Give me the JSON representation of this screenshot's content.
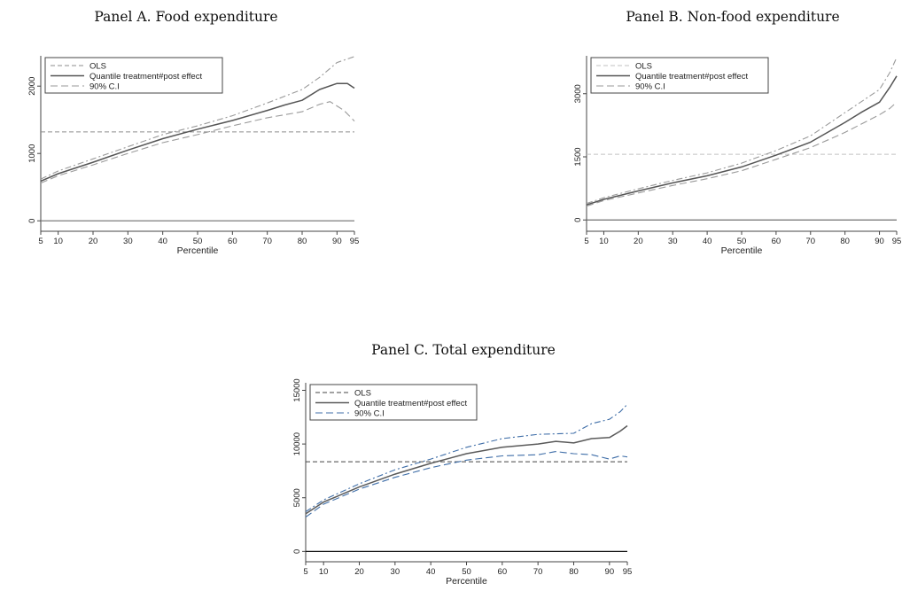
{
  "panels": [
    {
      "title": "Panel A. Food expenditure"
    },
    {
      "title": "Panel B. Non-food expenditure"
    },
    {
      "title": "Panel C. Total expenditure"
    }
  ],
  "chart_data": [
    {
      "type": "line",
      "title": "Panel A. Food expenditure",
      "xlabel": "Percentile",
      "ylabel": "",
      "xlim": [
        5,
        95
      ],
      "ylim": [
        -50,
        2450
      ],
      "xticks": [
        5,
        10,
        20,
        30,
        40,
        50,
        60,
        70,
        80,
        90,
        95
      ],
      "yticks": [
        0,
        1000,
        2000
      ],
      "grid": false,
      "legend_position": "top-left",
      "colors": {
        "ols": "#8c8c8c",
        "quantile": "#555555",
        "ci": "#9a9a9a",
        "zero": "#6f6f6f"
      },
      "legend": [
        "OLS",
        "Quantile treatment#post effect",
        "90% C.I"
      ],
      "ols": 1320,
      "series": [
        {
          "name": "Quantile treatment#post effect",
          "x": [
            5,
            10,
            20,
            30,
            40,
            50,
            60,
            70,
            75,
            80,
            85,
            90,
            93,
            95
          ],
          "y": [
            590,
            700,
            870,
            1050,
            1220,
            1360,
            1490,
            1640,
            1720,
            1790,
            1950,
            2040,
            2040,
            1970
          ]
        },
        {
          "name": "90% C.I upper",
          "x": [
            5,
            10,
            20,
            30,
            40,
            50,
            60,
            70,
            80,
            85,
            90,
            95
          ],
          "y": [
            620,
            740,
            920,
            1100,
            1280,
            1410,
            1560,
            1750,
            1950,
            2130,
            2350,
            2440
          ]
        },
        {
          "name": "90% C.I lower",
          "x": [
            5,
            10,
            20,
            30,
            40,
            50,
            60,
            70,
            80,
            85,
            88,
            92,
            95
          ],
          "y": [
            560,
            670,
            830,
            1000,
            1160,
            1280,
            1410,
            1530,
            1620,
            1730,
            1770,
            1640,
            1480
          ]
        }
      ]
    },
    {
      "type": "line",
      "title": "Panel B. Non-food expenditure",
      "xlabel": "Percentile",
      "ylabel": "",
      "xlim": [
        5,
        95
      ],
      "ylim": [
        -100,
        3900
      ],
      "xticks": [
        5,
        10,
        20,
        30,
        40,
        50,
        60,
        70,
        80,
        90,
        95
      ],
      "yticks": [
        0,
        1500,
        3000
      ],
      "grid": false,
      "legend_position": "top-left",
      "colors": {
        "ols": "#c2c2c2",
        "quantile": "#555555",
        "ci": "#9a9a9a",
        "zero": "#6f6f6f"
      },
      "legend": [
        "OLS",
        "Quantile treatment#post effect",
        "90% C.I"
      ],
      "ols": 1560,
      "series": [
        {
          "name": "Quantile treatment#post effect",
          "x": [
            5,
            10,
            20,
            30,
            40,
            50,
            60,
            70,
            80,
            85,
            90,
            93,
            95
          ],
          "y": [
            360,
            490,
            690,
            880,
            1050,
            1260,
            1540,
            1850,
            2320,
            2570,
            2800,
            3150,
            3420
          ]
        },
        {
          "name": "90% C.I upper",
          "x": [
            5,
            10,
            20,
            30,
            40,
            50,
            60,
            70,
            80,
            90,
            93,
            95
          ],
          "y": [
            390,
            530,
            740,
            940,
            1120,
            1350,
            1650,
            2000,
            2550,
            3100,
            3500,
            3860
          ]
        },
        {
          "name": "90% C.I lower",
          "x": [
            5,
            10,
            20,
            30,
            40,
            50,
            60,
            70,
            80,
            90,
            93,
            95
          ],
          "y": [
            330,
            460,
            640,
            820,
            980,
            1170,
            1440,
            1720,
            2080,
            2500,
            2650,
            2800
          ]
        }
      ]
    },
    {
      "type": "line",
      "title": "Panel C. Total expenditure",
      "xlabel": "Percentile",
      "ylabel": "",
      "xlim": [
        5,
        95
      ],
      "ylim": [
        -300,
        15700
      ],
      "xticks": [
        5,
        10,
        20,
        30,
        40,
        50,
        60,
        70,
        80,
        90,
        95
      ],
      "yticks": [
        0,
        5000,
        10000,
        15000
      ],
      "grid": false,
      "legend_position": "top-left",
      "colors": {
        "ols": "#444444",
        "quantile": "#5a5a5a",
        "ci": "#3f6ea8",
        "zero": "#111111"
      },
      "legend": [
        "OLS",
        "Quantile treatment#post effect",
        "90% C.I"
      ],
      "ols": 8350,
      "series": [
        {
          "name": "Quantile treatment#post effect",
          "x": [
            5,
            10,
            20,
            30,
            40,
            50,
            60,
            70,
            75,
            80,
            85,
            90,
            93,
            95
          ],
          "y": [
            3500,
            4600,
            6000,
            7200,
            8200,
            9100,
            9700,
            10000,
            10250,
            10100,
            10500,
            10600,
            11200,
            11700
          ]
        },
        {
          "name": "90% C.I upper",
          "x": [
            5,
            10,
            20,
            30,
            40,
            50,
            60,
            70,
            80,
            85,
            90,
            93,
            95
          ],
          "y": [
            3700,
            4800,
            6300,
            7600,
            8600,
            9700,
            10500,
            10900,
            11000,
            11900,
            12300,
            13000,
            13700
          ]
        },
        {
          "name": "90% C.I lower",
          "x": [
            5,
            10,
            20,
            30,
            40,
            50,
            60,
            70,
            75,
            80,
            85,
            90,
            93,
            95
          ],
          "y": [
            3200,
            4400,
            5800,
            6900,
            7800,
            8500,
            8900,
            9000,
            9300,
            9100,
            9000,
            8600,
            8900,
            8800
          ]
        }
      ]
    }
  ]
}
